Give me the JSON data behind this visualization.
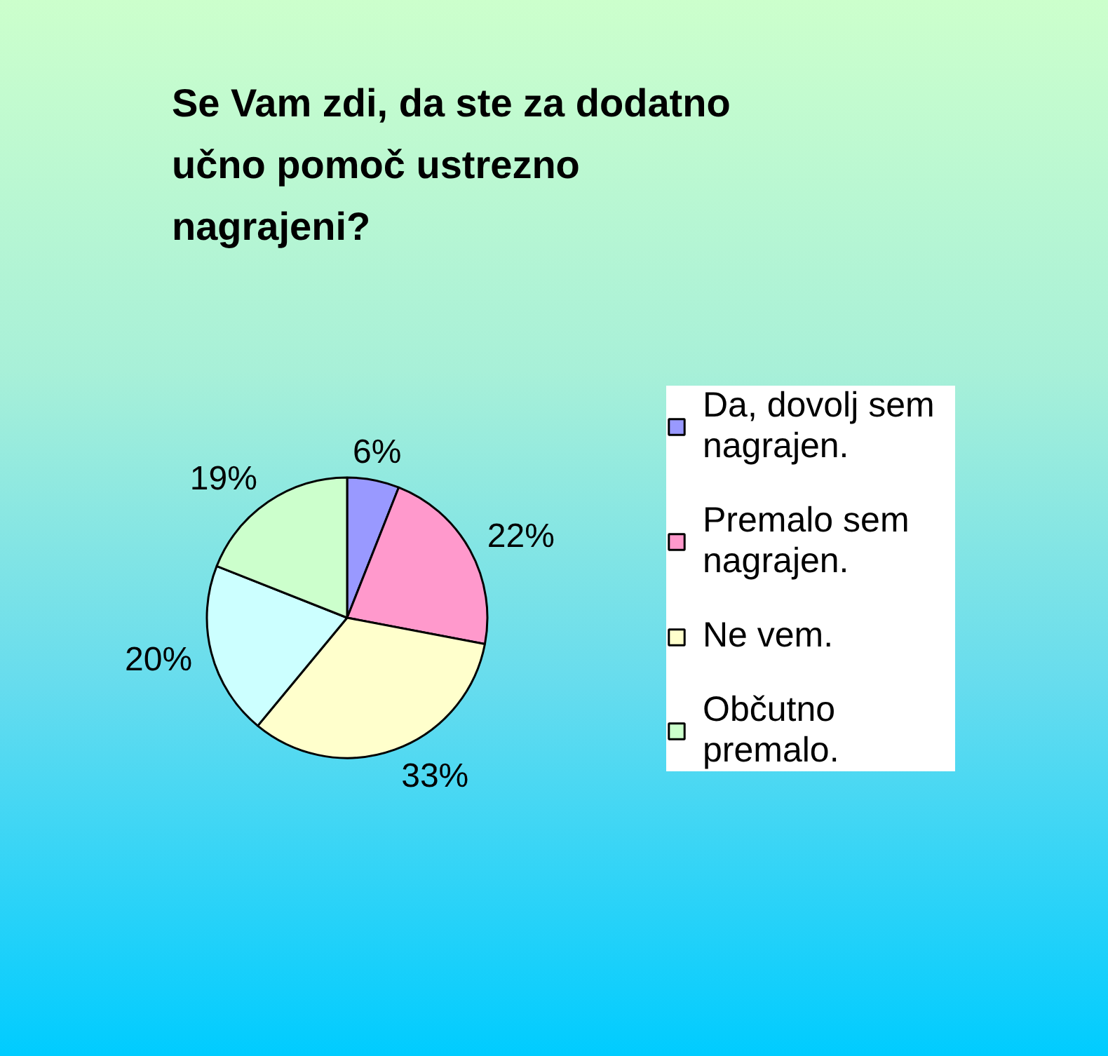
{
  "chart_data": {
    "type": "pie",
    "title": "Se Vam zdi, da ste za dodatno učno pomoč ustrezno nagrajeni?",
    "categories": [
      "Da, dovolj sem nagrajen.",
      "Premalo sem nagrajen.",
      "Ne vem.",
      null,
      "Občutno premalo."
    ],
    "values": [
      6,
      22,
      33,
      20,
      19
    ],
    "colors": [
      "#9999ff",
      "#ff99cc",
      "#ffffcc",
      "#ccffff",
      "#ccffcc"
    ],
    "value_labels": [
      "6%",
      "22%",
      "33%",
      "20%",
      "19%"
    ],
    "legend": "right"
  }
}
